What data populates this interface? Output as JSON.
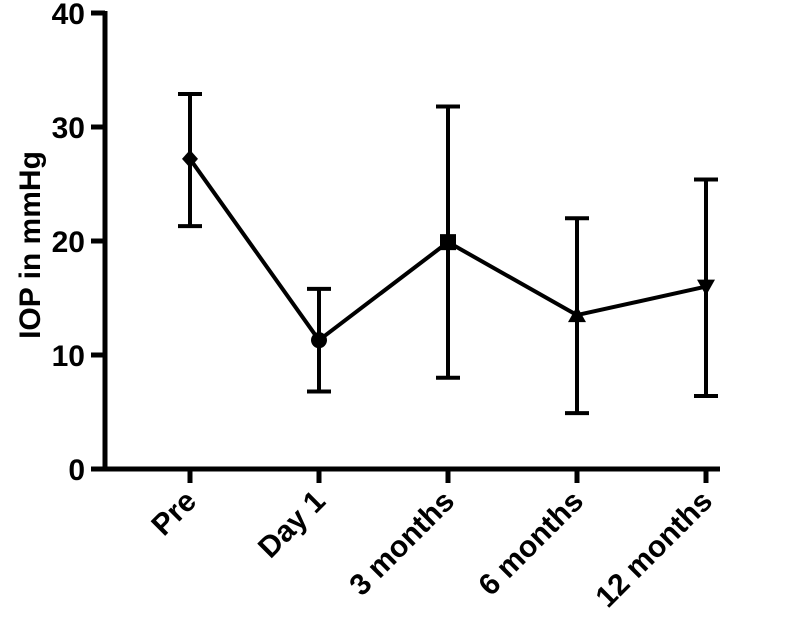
{
  "chart_data": {
    "type": "line",
    "title": "",
    "xlabel": "",
    "ylabel": "IOP in mmHg",
    "ylim": [
      0,
      40
    ],
    "yticks": [
      0,
      10,
      20,
      30,
      40
    ],
    "categories": [
      "Pre",
      "Day 1",
      "3 months",
      "6 months",
      "12 months"
    ],
    "series": [
      {
        "name": "IOP",
        "values": [
          27.2,
          11.3,
          19.9,
          13.5,
          16.0
        ],
        "error_low": [
          21.3,
          6.8,
          8.0,
          4.9,
          6.4
        ],
        "error_high": [
          32.9,
          15.8,
          31.8,
          22.0,
          25.4
        ],
        "markers": [
          "diamond",
          "circle",
          "square",
          "triangle-up",
          "triangle-down"
        ]
      }
    ],
    "color": "#000000"
  }
}
